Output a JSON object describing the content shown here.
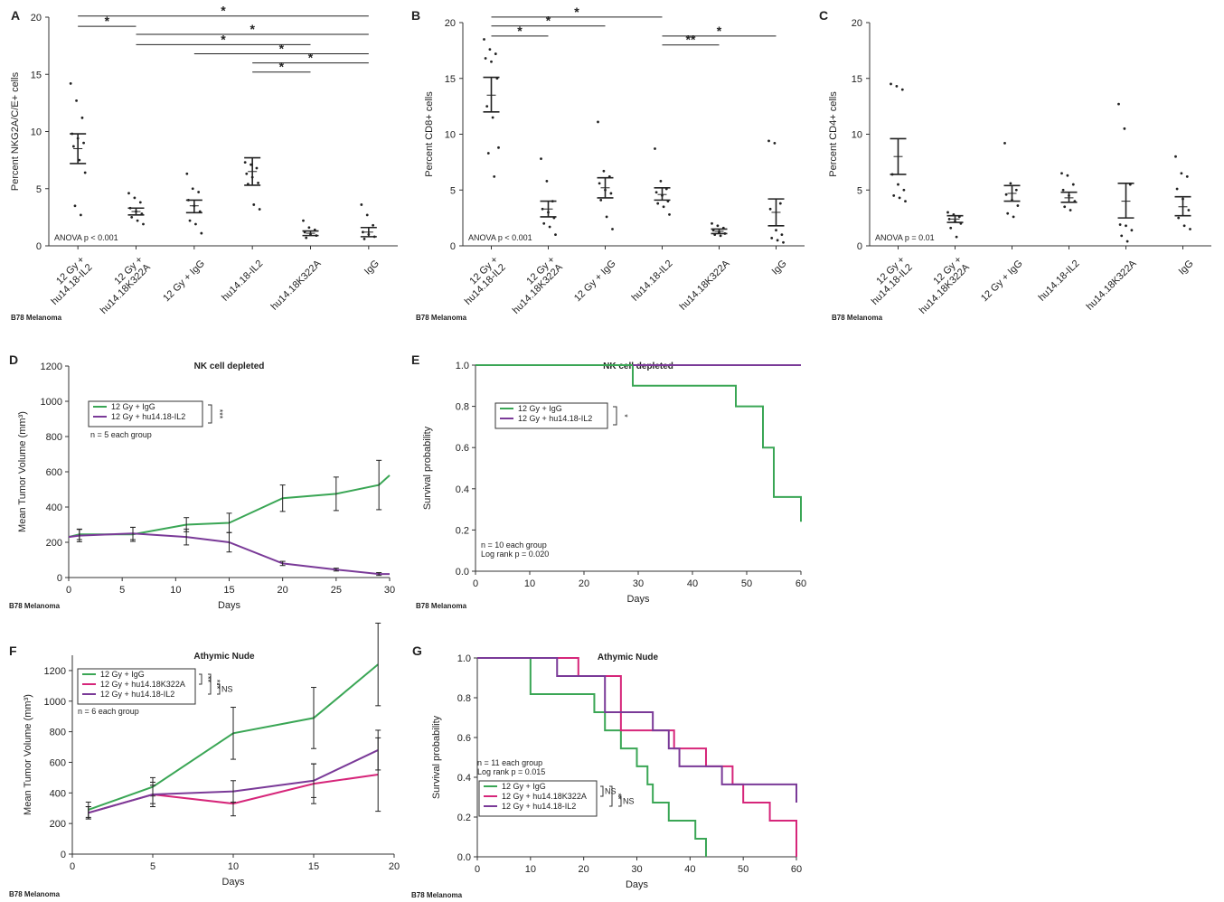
{
  "chart_data": [
    {
      "id": "A",
      "type": "scatter",
      "panel_label": "A",
      "ylabel": "Percent NKG2A/C/E+ cells",
      "ylim": [
        0,
        20
      ],
      "yticks": [
        0,
        5,
        10,
        15,
        20
      ],
      "categories": [
        "12 Gy +\nhu14.18-IL2",
        "12 Gy +\nhu14.18K322A",
        "12 Gy + IgG",
        "hu14.18-IL2",
        "hu14.18K322A",
        "IgG"
      ],
      "means": [
        8.5,
        3.0,
        3.5,
        6.5,
        1.1,
        1.2
      ],
      "sem_low": [
        7.2,
        2.7,
        2.9,
        5.3,
        0.9,
        0.8
      ],
      "sem_high": [
        9.8,
        3.3,
        4.0,
        7.7,
        1.3,
        1.6
      ],
      "points": [
        [
          14.2,
          12.7,
          11.2,
          9.8,
          9.4,
          9.0,
          8.7,
          7.5,
          6.4,
          3.5,
          2.7
        ],
        [
          4.6,
          4.2,
          3.8,
          3.3,
          3.0,
          2.8,
          2.5,
          2.2,
          1.9
        ],
        [
          6.3,
          5.0,
          4.7,
          4.0,
          3.5,
          3.0,
          2.2,
          1.9,
          1.1
        ],
        [
          7.3,
          7.1,
          6.8,
          6.3,
          6.0,
          5.5,
          5.4,
          3.6,
          3.2
        ],
        [
          2.2,
          1.6,
          1.4,
          1.2,
          1.0,
          0.9,
          0.7
        ],
        [
          3.6,
          2.7,
          1.8,
          1.2,
          1.0,
          0.8,
          0.6
        ]
      ],
      "significance": [
        {
          "from": 0,
          "to": 5,
          "y": 20.1,
          "label": "*"
        },
        {
          "from": 0,
          "to": 1,
          "y": 19.2,
          "label": "*"
        },
        {
          "from": 1,
          "to": 5,
          "y": 18.5,
          "label": "*"
        },
        {
          "from": 1,
          "to": 4,
          "y": 17.6,
          "label": "*"
        },
        {
          "from": 2,
          "to": 5,
          "y": 16.8,
          "label": "*"
        },
        {
          "from": 3,
          "to": 5,
          "y": 16.0,
          "label": "*"
        },
        {
          "from": 3,
          "to": 4,
          "y": 15.2,
          "label": "*"
        }
      ],
      "annotation": "ANOVA p < 0.001",
      "footer": "B78 Melanoma"
    },
    {
      "id": "B",
      "type": "scatter",
      "panel_label": "B",
      "ylabel": "Percent CD8+ cells",
      "ylim": [
        0,
        20
      ],
      "yticks": [
        0,
        5,
        10,
        15,
        20
      ],
      "categories": [
        "12 Gy +\nhu14.18-IL2",
        "12 Gy +\nhu14.18K322A",
        "12 Gy + IgG",
        "hu14.18-IL2",
        "hu14.18K322A",
        "IgG"
      ],
      "means": [
        13.5,
        3.3,
        5.2,
        4.6,
        1.3,
        3.0
      ],
      "sem_low": [
        12.0,
        2.6,
        4.3,
        4.1,
        1.1,
        1.8
      ],
      "sem_high": [
        15.1,
        4.0,
        6.1,
        5.2,
        1.5,
        4.2
      ],
      "points": [
        [
          18.5,
          17.6,
          17.2,
          16.8,
          16.5,
          15.0,
          12.5,
          11.5,
          8.8,
          8.3,
          6.2
        ],
        [
          7.8,
          5.8,
          4.0,
          3.3,
          3.0,
          2.5,
          2.0,
          1.7,
          1.0
        ],
        [
          11.1,
          6.7,
          6.2,
          5.6,
          5.0,
          4.7,
          4.1,
          2.6,
          1.5
        ],
        [
          8.7,
          5.8,
          5.1,
          4.8,
          4.5,
          4.0,
          3.8,
          3.5,
          2.8
        ],
        [
          2.0,
          1.8,
          1.6,
          1.4,
          1.2,
          1.1,
          1.0,
          0.9
        ],
        [
          9.4,
          9.2,
          3.8,
          3.3,
          1.4,
          1.0,
          0.7,
          0.5,
          0.3
        ]
      ],
      "significance": [
        {
          "from": 0,
          "to": 3,
          "y": 20.5,
          "label": "*"
        },
        {
          "from": 0,
          "to": 2,
          "y": 19.7,
          "label": "*"
        },
        {
          "from": 0,
          "to": 1,
          "y": 18.8,
          "label": "*"
        },
        {
          "from": 3,
          "to": 5,
          "y": 18.8,
          "label": "*"
        },
        {
          "from": 3,
          "to": 4,
          "y": 18.0,
          "label": "**"
        }
      ],
      "annotation": "ANOVA p < 0.001",
      "footer": "B78 Melanoma"
    },
    {
      "id": "C",
      "type": "scatter",
      "panel_label": "C",
      "ylabel": "Percent CD4+ cells",
      "ylim": [
        0,
        20
      ],
      "yticks": [
        0,
        5,
        10,
        15,
        20
      ],
      "categories": [
        "12 Gy +\nhu14.18-IL2",
        "12 Gy +\nhu14.18K322A",
        "12 Gy + IgG",
        "hu14.18-IL2",
        "hu14.18K322A",
        "IgG"
      ],
      "means": [
        8.0,
        2.4,
        4.7,
        4.3,
        4.0,
        3.5
      ],
      "sem_low": [
        6.4,
        2.1,
        4.0,
        3.9,
        2.5,
        2.7
      ],
      "sem_high": [
        9.6,
        2.7,
        5.4,
        4.8,
        5.6,
        4.4
      ],
      "points": [
        [
          14.5,
          14.3,
          14.0,
          6.4,
          5.5,
          5.0,
          4.5,
          4.3,
          4.0
        ],
        [
          3.0,
          2.8,
          2.6,
          2.4,
          2.2,
          2.0,
          1.6,
          0.8
        ],
        [
          9.2,
          5.6,
          5.0,
          4.6,
          4.1,
          3.6,
          2.9,
          2.6
        ],
        [
          6.5,
          6.3,
          5.5,
          5.0,
          4.5,
          4.0,
          3.5,
          3.2
        ],
        [
          12.7,
          10.5,
          5.5,
          1.9,
          1.8,
          1.4,
          0.9,
          0.4
        ],
        [
          8.0,
          6.5,
          6.2,
          5.1,
          4.2,
          3.2,
          2.5,
          1.8,
          1.5
        ]
      ],
      "significance": [],
      "annotation": "ANOVA p = 0.01",
      "footer": "B78 Melanoma"
    },
    {
      "id": "D",
      "type": "line",
      "panel_label": "D",
      "title": "NK cell depleted",
      "xlabel": "Days",
      "ylabel": "Mean Tumor Volume (mm³)",
      "xlim": [
        0,
        30
      ],
      "ylim": [
        0,
        1200
      ],
      "xticks": [
        0,
        5,
        10,
        15,
        20,
        25,
        30
      ],
      "yticks": [
        0,
        200,
        400,
        600,
        800,
        1000,
        1200
      ],
      "series": [
        {
          "name": "12 Gy + IgG",
          "color": "#3aa655",
          "x": [
            0,
            1,
            6,
            11,
            15,
            20,
            25,
            29,
            30
          ],
          "y": [
            230,
            245,
            245,
            300,
            310,
            450,
            475,
            525,
            580
          ],
          "err": [
            null,
            30,
            40,
            40,
            55,
            75,
            95,
            140,
            null
          ]
        },
        {
          "name": "12 Gy + hu14.18-IL2",
          "color": "#7a3a98",
          "x": [
            0,
            1,
            6,
            11,
            15,
            20,
            25,
            29,
            30
          ],
          "y": [
            230,
            238,
            250,
            230,
            200,
            80,
            45,
            20,
            20
          ],
          "err": [
            null,
            35,
            35,
            45,
            55,
            12,
            8,
            8,
            null
          ]
        }
      ],
      "legend_bracket": "***",
      "note": "n = 5 each group",
      "footer": "B78 Melanoma"
    },
    {
      "id": "E",
      "type": "line",
      "panel_label": "E",
      "title": "NK cell depleted",
      "xlabel": "Days",
      "ylabel": "Survival probability",
      "xlim": [
        0,
        60
      ],
      "ylim": [
        0,
        1
      ],
      "xticks": [
        0,
        10,
        20,
        30,
        40,
        50,
        60
      ],
      "yticks": [
        0.0,
        0.2,
        0.4,
        0.6,
        0.8,
        1.0
      ],
      "series": [
        {
          "name": "12 Gy + IgG",
          "color": "#3aa655",
          "step": true,
          "x": [
            0,
            29,
            29,
            48,
            48,
            53,
            53,
            55,
            55,
            60,
            60
          ],
          "y": [
            1.0,
            1.0,
            0.9,
            0.9,
            0.8,
            0.8,
            0.6,
            0.6,
            0.36,
            0.36,
            0.24
          ]
        },
        {
          "name": "12 Gy + hu14.18-IL2",
          "color": "#7a3a98",
          "step": true,
          "x": [
            29,
            60
          ],
          "y": [
            1.0,
            1.0
          ]
        }
      ],
      "legend_bracket": "*",
      "note": [
        "n = 10 each group",
        "Log rank p = 0.020"
      ],
      "footer": "B78 Melanoma"
    },
    {
      "id": "F",
      "type": "line",
      "panel_label": "F",
      "title": "Athymic Nude",
      "xlabel": "Days",
      "ylabel": "Mean Tumor Volume (mm³)",
      "xlim": [
        0,
        20
      ],
      "ylim": [
        0,
        1300
      ],
      "xticks": [
        0,
        5,
        10,
        15,
        20
      ],
      "yticks": [
        0,
        200,
        400,
        600,
        800,
        1000,
        1200
      ],
      "series": [
        {
          "name": "12 Gy + IgG",
          "color": "#3aa655",
          "x": [
            1,
            5,
            10,
            15,
            19
          ],
          "y": [
            290,
            440,
            790,
            890,
            1240
          ],
          "err": [
            50,
            60,
            170,
            200,
            270
          ]
        },
        {
          "name": "12 Gy + hu14.18K322A",
          "color": "#d6267a",
          "x": [
            1,
            5,
            10,
            15,
            19
          ],
          "y": [
            270,
            390,
            330,
            460,
            520
          ],
          "err": [
            40,
            60,
            80,
            130,
            240
          ]
        },
        {
          "name": "12 Gy + hu14.18-IL2",
          "color": "#7a3a98",
          "x": [
            1,
            5,
            10,
            15,
            19
          ],
          "y": [
            270,
            390,
            410,
            480,
            680
          ],
          "err": [
            40,
            80,
            70,
            110,
            130
          ]
        }
      ],
      "legend_brackets": [
        "**",
        "***",
        "NS"
      ],
      "note": "n = 6 each group",
      "footer": "B78 Melanoma"
    },
    {
      "id": "G",
      "type": "line",
      "panel_label": "G",
      "title": "Athymic Nude",
      "xlabel": "Days",
      "ylabel": "Survival probability",
      "xlim": [
        0,
        60
      ],
      "ylim": [
        0,
        1
      ],
      "xticks": [
        0,
        10,
        20,
        30,
        40,
        50,
        60
      ],
      "yticks": [
        0.0,
        0.2,
        0.4,
        0.6,
        0.8,
        1.0
      ],
      "series": [
        {
          "name": "12 Gy + IgG",
          "color": "#3aa655",
          "step": true,
          "x": [
            0,
            10,
            10,
            22,
            22,
            24,
            24,
            27,
            27,
            30,
            30,
            32,
            32,
            33,
            33,
            36,
            36,
            41,
            41,
            43,
            43
          ],
          "y": [
            1.0,
            1.0,
            0.818,
            0.818,
            0.727,
            0.727,
            0.636,
            0.636,
            0.545,
            0.545,
            0.455,
            0.455,
            0.364,
            0.364,
            0.273,
            0.273,
            0.182,
            0.182,
            0.091,
            0.091,
            0.0
          ]
        },
        {
          "name": "12 Gy + hu14.18K322A",
          "color": "#d6267a",
          "step": true,
          "x": [
            15,
            19,
            19,
            27,
            27,
            37,
            37,
            43,
            43,
            48,
            48,
            50,
            50,
            55,
            55,
            60,
            60
          ],
          "y": [
            1.0,
            1.0,
            0.909,
            0.909,
            0.636,
            0.636,
            0.545,
            0.545,
            0.455,
            0.455,
            0.364,
            0.364,
            0.273,
            0.273,
            0.182,
            0.182,
            0.0
          ]
        },
        {
          "name": "12 Gy + hu14.18-IL2",
          "color": "#7a3a98",
          "step": true,
          "x": [
            0,
            15,
            15,
            24,
            24,
            33,
            33,
            36,
            36,
            38,
            38,
            46,
            46,
            60,
            60
          ],
          "y": [
            1.0,
            1.0,
            0.909,
            0.909,
            0.727,
            0.727,
            0.636,
            0.636,
            0.545,
            0.545,
            0.455,
            0.455,
            0.364,
            0.364,
            0.273
          ]
        }
      ],
      "legend_brackets": [
        "NS",
        "**",
        "NS"
      ],
      "note": [
        "n = 11 each group",
        "Log rank p = 0.015"
      ],
      "footer": "B78 Melanoma"
    }
  ]
}
